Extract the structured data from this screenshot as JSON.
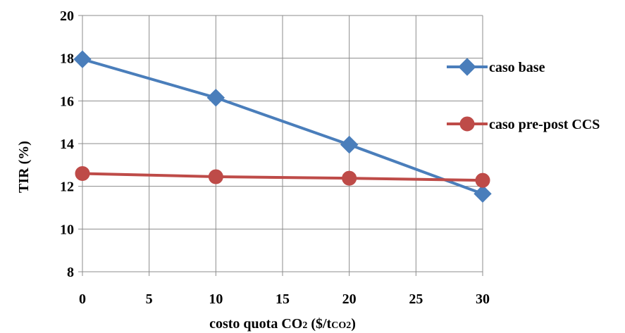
{
  "chart_data": {
    "type": "line",
    "x": [
      0,
      10,
      20,
      30
    ],
    "xlim": [
      0,
      30
    ],
    "xticks": [
      0,
      5,
      10,
      15,
      20,
      25,
      30
    ],
    "ylim": [
      8,
      20
    ],
    "yticks": [
      8,
      10,
      12,
      14,
      16,
      18,
      20
    ],
    "grid": true,
    "legend_position": "right",
    "ylabel": "TIR (%)",
    "xlabel": {
      "pre": "costo quota CO",
      "sub": "2",
      "mid": " ($/t",
      "sub2": "CO2",
      "post": ")"
    },
    "series": [
      {
        "name": "caso base",
        "values": [
          17.95,
          16.15,
          13.95,
          11.65
        ],
        "color": "#4a7ebb",
        "marker": "diamond"
      },
      {
        "name": "caso pre-post CCS",
        "values": [
          12.6,
          12.45,
          12.38,
          12.28
        ],
        "color": "#be4b48",
        "marker": "circle"
      }
    ]
  }
}
